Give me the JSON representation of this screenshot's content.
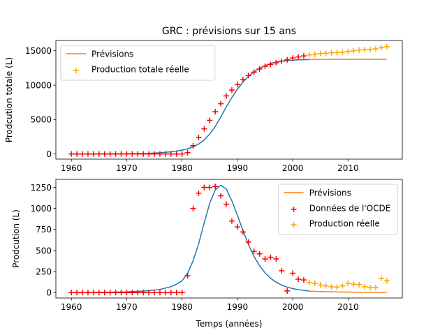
{
  "chart_data": [
    {
      "type": "line",
      "title": "GRC : prévisions sur 15 ans",
      "xlabel": "",
      "ylabel": "Prodcution totale (L)",
      "xlim": [
        1957.2,
        2019.8
      ],
      "ylim": [
        -750,
        16500
      ],
      "xticks": [
        1960,
        1970,
        1980,
        1990,
        2000,
        2010
      ],
      "yticks": [
        0,
        5000,
        10000,
        15000
      ],
      "legend_position": "upper left",
      "grid": false,
      "series": [
        {
          "name": "",
          "kind": "line",
          "color": "#1f77b4",
          "x": [
            1960,
            1965,
            1970,
            1974,
            1976,
            1978,
            1980,
            1981,
            1982,
            1983,
            1984,
            1985,
            1986,
            1987,
            1988,
            1989,
            1990,
            1991,
            1992,
            1993,
            1994,
            1995,
            1996,
            1997,
            1998,
            1999,
            2000,
            2001,
            2002,
            2003
          ],
          "y": [
            0,
            5,
            25,
            90,
            170,
            310,
            560,
            760,
            1040,
            1450,
            2050,
            2900,
            4000,
            5400,
            6850,
            8200,
            9400,
            10450,
            11300,
            11950,
            12450,
            12850,
            13150,
            13350,
            13500,
            13580,
            13640,
            13680,
            13700,
            13720
          ]
        },
        {
          "name": "Prévisions",
          "kind": "line",
          "color": "#ff7f0e",
          "x": [
            2003,
            2005,
            2010,
            2015,
            2017
          ],
          "y": [
            13750,
            13750,
            13750,
            13750,
            13750
          ]
        },
        {
          "name": "",
          "kind": "scatter",
          "color": "#ff0000",
          "x": [
            1960,
            1961,
            1962,
            1963,
            1964,
            1965,
            1966,
            1967,
            1968,
            1969,
            1970,
            1971,
            1972,
            1973,
            1974,
            1975,
            1976,
            1977,
            1978,
            1979,
            1980,
            1981,
            1982,
            1983,
            1984,
            1985,
            1986,
            1987,
            1988,
            1989,
            1990,
            1991,
            1992,
            1993,
            1994,
            1995,
            1996,
            1997,
            1998,
            1999,
            2000,
            2001,
            2002
          ],
          "y": [
            0,
            0,
            0,
            0,
            0,
            0,
            0,
            0,
            0,
            0,
            0,
            0,
            0,
            0,
            0,
            0,
            0,
            0,
            0,
            0,
            0,
            200,
            1200,
            2400,
            3650,
            4900,
            6150,
            7300,
            8450,
            9300,
            10100,
            10800,
            11400,
            11900,
            12350,
            12750,
            13000,
            13250,
            13500,
            13700,
            13950,
            14100,
            14250
          ]
        },
        {
          "name": "Production totale réelle",
          "kind": "scatter",
          "color": "#ffa500",
          "x": [
            2003,
            2004,
            2005,
            2006,
            2007,
            2008,
            2009,
            2010,
            2011,
            2012,
            2013,
            2014,
            2015,
            2016,
            2017
          ],
          "y": [
            14400,
            14500,
            14600,
            14650,
            14700,
            14750,
            14800,
            14900,
            15000,
            15100,
            15150,
            15200,
            15300,
            15450,
            15600
          ]
        }
      ]
    },
    {
      "type": "line",
      "title": "",
      "xlabel": "Temps (années)",
      "ylabel": "Prodcution (L)",
      "xlim": [
        1957.2,
        2019.8
      ],
      "ylim": [
        -64,
        1345
      ],
      "xticks": [
        1960,
        1970,
        1980,
        1990,
        2000,
        2010
      ],
      "yticks": [
        0,
        250,
        500,
        750,
        1000,
        1250
      ],
      "legend_position": "upper right",
      "grid": false,
      "series": [
        {
          "name": "",
          "kind": "line",
          "color": "#1f77b4",
          "x": [
            1960,
            1965,
            1970,
            1974,
            1976,
            1978,
            1979,
            1980,
            1981,
            1982,
            1983,
            1984,
            1985,
            1986,
            1987,
            1988,
            1989,
            1990,
            1991,
            1992,
            1993,
            1994,
            1995,
            1996,
            1997,
            1998,
            1999,
            2000,
            2001,
            2002,
            2003
          ],
          "y": [
            0,
            2,
            8,
            22,
            38,
            70,
            100,
            140,
            230,
            380,
            580,
            830,
            1060,
            1220,
            1275,
            1230,
            1090,
            920,
            740,
            570,
            430,
            320,
            235,
            170,
            125,
            90,
            65,
            48,
            36,
            26,
            18
          ]
        },
        {
          "name": "Prévisions",
          "kind": "line",
          "color": "#ff7f0e",
          "x": [
            2003,
            2005,
            2008,
            2011,
            2014,
            2017
          ],
          "y": [
            18,
            13,
            8,
            5,
            3,
            2
          ]
        },
        {
          "name": "Données de l'OCDE",
          "kind": "scatter",
          "color": "#ff0000",
          "x": [
            1960,
            1961,
            1962,
            1963,
            1964,
            1965,
            1966,
            1967,
            1968,
            1969,
            1970,
            1971,
            1972,
            1973,
            1974,
            1975,
            1976,
            1977,
            1978,
            1979,
            1980,
            1981,
            1982,
            1983,
            1984,
            1985,
            1986,
            1987,
            1988,
            1989,
            1990,
            1991,
            1992,
            1993,
            1994,
            1995,
            1996,
            1997,
            1998,
            1999,
            2000,
            2001,
            2002
          ],
          "y": [
            0,
            0,
            0,
            0,
            0,
            0,
            0,
            0,
            0,
            0,
            0,
            0,
            0,
            0,
            0,
            0,
            0,
            0,
            0,
            0,
            0,
            200,
            1000,
            1180,
            1250,
            1250,
            1260,
            1150,
            1050,
            850,
            780,
            720,
            600,
            490,
            460,
            400,
            420,
            400,
            260,
            20,
            230,
            160,
            150
          ]
        },
        {
          "name": "Production réelle",
          "kind": "scatter",
          "color": "#ffa500",
          "x": [
            2003,
            2004,
            2005,
            2006,
            2007,
            2008,
            2009,
            2010,
            2011,
            2012,
            2013,
            2014,
            2015,
            2016,
            2017
          ],
          "y": [
            120,
            110,
            90,
            80,
            70,
            65,
            80,
            110,
            100,
            95,
            70,
            60,
            60,
            170,
            140
          ]
        }
      ]
    }
  ]
}
